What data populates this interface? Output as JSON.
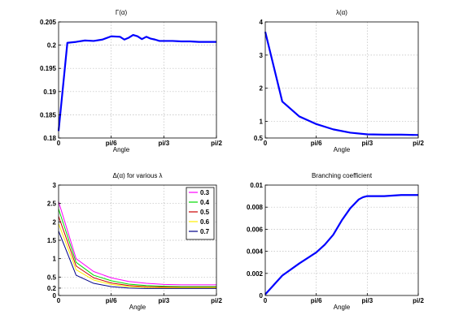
{
  "chart_data": [
    {
      "type": "line",
      "title": "Γ(α)",
      "xlabel": "Angle",
      "ylabel": "",
      "xlim": [
        0,
        1.5708
      ],
      "ylim": [
        0.18,
        0.205
      ],
      "x_ticks": [
        {
          "v": 0,
          "label": "0"
        },
        {
          "v": 0.5236,
          "label": "pi/6"
        },
        {
          "v": 1.0472,
          "label": "pi/3"
        },
        {
          "v": 1.5708,
          "label": "pi/2"
        }
      ],
      "y_ticks": [
        {
          "v": 0.18,
          "label": "0.18"
        },
        {
          "v": 0.185,
          "label": "0.185"
        },
        {
          "v": 0.19,
          "label": "0.19"
        },
        {
          "v": 0.195,
          "label": "0.195"
        },
        {
          "v": 0.2,
          "label": "0.2"
        },
        {
          "v": 0.205,
          "label": "0.205"
        }
      ],
      "grid": true,
      "series": [
        {
          "color": "#0000ff",
          "width": 2.2,
          "x": [
            0,
            0.0873,
            0.1745,
            0.2618,
            0.3491,
            0.4363,
            0.5236,
            0.6109,
            0.6545,
            0.6981,
            0.7418,
            0.7854,
            0.829,
            0.8727,
            0.9163,
            0.9599,
            1.0036,
            1.0472,
            1.1345,
            1.2217,
            1.309,
            1.3963,
            1.4835,
            1.5708
          ],
          "y": [
            0.1815,
            0.2005,
            0.2007,
            0.201,
            0.2009,
            0.2012,
            0.2019,
            0.2018,
            0.2012,
            0.2016,
            0.2022,
            0.2019,
            0.2013,
            0.2018,
            0.2014,
            0.2012,
            0.2009,
            0.2009,
            0.2009,
            0.2008,
            0.2008,
            0.2007,
            0.2007,
            0.2007
          ]
        }
      ]
    },
    {
      "type": "line",
      "title": "λ(α)",
      "xlabel": "Angle",
      "ylabel": "",
      "xlim": [
        0,
        1.5708
      ],
      "ylim": [
        0.5,
        4
      ],
      "x_ticks": [
        {
          "v": 0,
          "label": "0"
        },
        {
          "v": 0.5236,
          "label": "pi/6"
        },
        {
          "v": 1.0472,
          "label": "pi/3"
        },
        {
          "v": 1.5708,
          "label": "pi/2"
        }
      ],
      "y_ticks": [
        {
          "v": 0.5,
          "label": "0.5"
        },
        {
          "v": 1,
          "label": "1"
        },
        {
          "v": 2,
          "label": "2"
        },
        {
          "v": 3,
          "label": "3"
        },
        {
          "v": 4,
          "label": "4"
        }
      ],
      "grid": true,
      "series": [
        {
          "color": "#0000ff",
          "width": 2.2,
          "x": [
            0,
            0.1745,
            0.349,
            0.5236,
            0.6981,
            0.8727,
            1.0472,
            1.2217,
            1.3963,
            1.5708
          ],
          "y": [
            3.7,
            1.6,
            1.15,
            0.92,
            0.76,
            0.66,
            0.61,
            0.6,
            0.6,
            0.59
          ]
        }
      ]
    },
    {
      "type": "line",
      "title": "Δ(α) for various λ",
      "xlabel": "Angle",
      "ylabel": "",
      "xlim": [
        0,
        1.5708
      ],
      "ylim": [
        0,
        3
      ],
      "x_ticks": [
        {
          "v": 0,
          "label": "0"
        },
        {
          "v": 0.5236,
          "label": "pi/6"
        },
        {
          "v": 1.0472,
          "label": "pi/3"
        },
        {
          "v": 1.5708,
          "label": "pi/2"
        }
      ],
      "y_ticks": [
        {
          "v": 0,
          "label": "0"
        },
        {
          "v": 0.2,
          "label": "0.2"
        },
        {
          "v": 0.5,
          "label": "0.5"
        },
        {
          "v": 1,
          "label": "1"
        },
        {
          "v": 1.5,
          "label": "1.5"
        },
        {
          "v": 2,
          "label": "2"
        },
        {
          "v": 2.5,
          "label": "2.5"
        },
        {
          "v": 3,
          "label": "3"
        }
      ],
      "grid": true,
      "legend": "top-right",
      "series": [
        {
          "name": "0.3",
          "color": "#ff00ff",
          "width": 1,
          "x": [
            0,
            0.1745,
            0.349,
            0.5236,
            0.6981,
            0.8727,
            1.0472,
            1.2217,
            1.3963,
            1.5708
          ],
          "y": [
            2.55,
            1.0,
            0.65,
            0.48,
            0.38,
            0.33,
            0.3,
            0.29,
            0.29,
            0.29
          ]
        },
        {
          "name": "0.4",
          "color": "#00dd00",
          "width": 1,
          "x": [
            0,
            0.1745,
            0.349,
            0.5236,
            0.6981,
            0.8727,
            1.0472,
            1.2217,
            1.3963,
            1.5708
          ],
          "y": [
            2.35,
            0.9,
            0.55,
            0.4,
            0.31,
            0.27,
            0.25,
            0.24,
            0.24,
            0.24
          ]
        },
        {
          "name": "0.5",
          "color": "#cc0000",
          "width": 1,
          "x": [
            0,
            0.1745,
            0.349,
            0.5236,
            0.6981,
            0.8727,
            1.0472,
            1.2217,
            1.3963,
            1.5708
          ],
          "y": [
            2.15,
            0.8,
            0.48,
            0.34,
            0.27,
            0.24,
            0.23,
            0.22,
            0.22,
            0.22
          ]
        },
        {
          "name": "0.6",
          "color": "#ffee00",
          "width": 1,
          "x": [
            0,
            0.1745,
            0.349,
            0.5236,
            0.6981,
            0.8727,
            1.0472,
            1.2217,
            1.3963,
            1.5708
          ],
          "y": [
            1.95,
            0.7,
            0.42,
            0.3,
            0.24,
            0.22,
            0.21,
            0.21,
            0.21,
            0.21
          ]
        },
        {
          "name": "0.7",
          "color": "#000088",
          "width": 1,
          "x": [
            0,
            0.1745,
            0.349,
            0.5236,
            0.6981,
            0.8727,
            1.0472,
            1.2217,
            1.3963,
            1.5708
          ],
          "y": [
            1.75,
            0.55,
            0.33,
            0.24,
            0.2,
            0.19,
            0.19,
            0.19,
            0.19,
            0.19
          ]
        }
      ]
    },
    {
      "type": "line",
      "title": "Branching coefficient",
      "xlabel": "Angle",
      "ylabel": "",
      "xlim": [
        0,
        1.5708
      ],
      "ylim": [
        0,
        0.01
      ],
      "x_ticks": [
        {
          "v": 0,
          "label": "0"
        },
        {
          "v": 0.5236,
          "label": "pi/6"
        },
        {
          "v": 1.0472,
          "label": "pi/3"
        },
        {
          "v": 1.5708,
          "label": "pi/2"
        }
      ],
      "y_ticks": [
        {
          "v": 0,
          "label": "0"
        },
        {
          "v": 0.002,
          "label": "0.002"
        },
        {
          "v": 0.004,
          "label": "0.004"
        },
        {
          "v": 0.006,
          "label": "0.006"
        },
        {
          "v": 0.008,
          "label": "0.008"
        },
        {
          "v": 0.01,
          "label": "0.01"
        }
      ],
      "grid": true,
      "series": [
        {
          "color": "#0000ff",
          "width": 2.2,
          "x": [
            0,
            0.1745,
            0.349,
            0.5236,
            0.6109,
            0.6981,
            0.7854,
            0.8727,
            0.9599,
            1.0036,
            1.0472,
            1.2217,
            1.3963,
            1.5708
          ],
          "y": [
            0.0001,
            0.0018,
            0.0029,
            0.0039,
            0.0046,
            0.0055,
            0.0068,
            0.0079,
            0.0087,
            0.0089,
            0.009,
            0.009,
            0.0091,
            0.0091
          ]
        }
      ]
    }
  ]
}
